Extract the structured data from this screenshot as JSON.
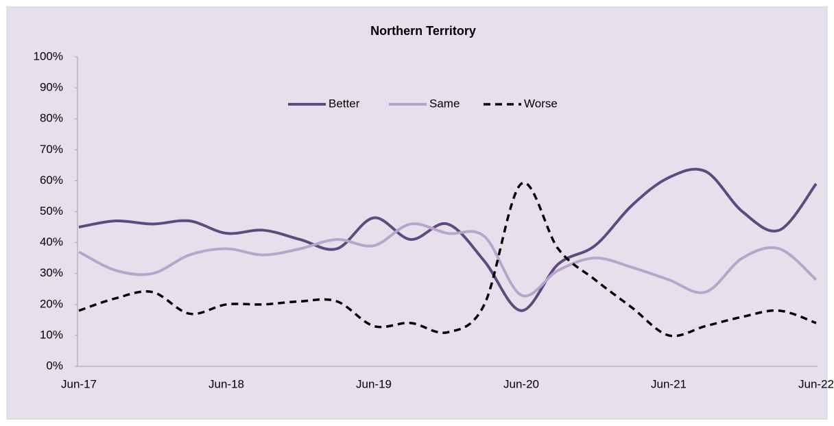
{
  "chart_data": {
    "type": "line",
    "title": "Northern Territory",
    "categories": [
      "Jun-17",
      null,
      null,
      null,
      "Jun-18",
      null,
      null,
      null,
      "Jun-19",
      null,
      null,
      null,
      "Jun-20",
      null,
      null,
      null,
      "Jun-21",
      null,
      null,
      null,
      "Jun-22"
    ],
    "series": [
      {
        "name": "Better",
        "color": "#5e4a7e",
        "dash": false,
        "values": [
          45,
          47,
          46,
          47,
          43,
          44,
          41,
          38,
          48,
          41,
          46,
          34,
          18,
          33,
          39,
          52,
          61,
          63,
          50,
          44,
          59
        ]
      },
      {
        "name": "Same",
        "color": "#b8a5cc",
        "dash": false,
        "values": [
          37,
          31,
          30,
          36,
          38,
          36,
          38,
          41,
          39,
          46,
          43,
          42,
          23,
          31,
          35,
          32,
          28,
          24,
          35,
          38,
          28
        ]
      },
      {
        "name": "Worse",
        "color": "#000000",
        "dash": true,
        "values": [
          18,
          22,
          24,
          17,
          20,
          20,
          21,
          21,
          13,
          14,
          11,
          20,
          59,
          38,
          28,
          19,
          10,
          13,
          16,
          18,
          14
        ]
      }
    ],
    "ylim": [
      0,
      100
    ],
    "yticks": [
      {
        "value": 0,
        "label": "0%"
      },
      {
        "value": 10,
        "label": "10%"
      },
      {
        "value": 20,
        "label": "20%"
      },
      {
        "value": 30,
        "label": "30%"
      },
      {
        "value": 40,
        "label": "40%"
      },
      {
        "value": 50,
        "label": "50%"
      },
      {
        "value": 60,
        "label": "60%"
      },
      {
        "value": 70,
        "label": "70%"
      },
      {
        "value": 80,
        "label": "80%"
      },
      {
        "value": 90,
        "label": "90%"
      },
      {
        "value": 100,
        "label": "100%"
      }
    ],
    "grid": false,
    "legend": "top"
  }
}
